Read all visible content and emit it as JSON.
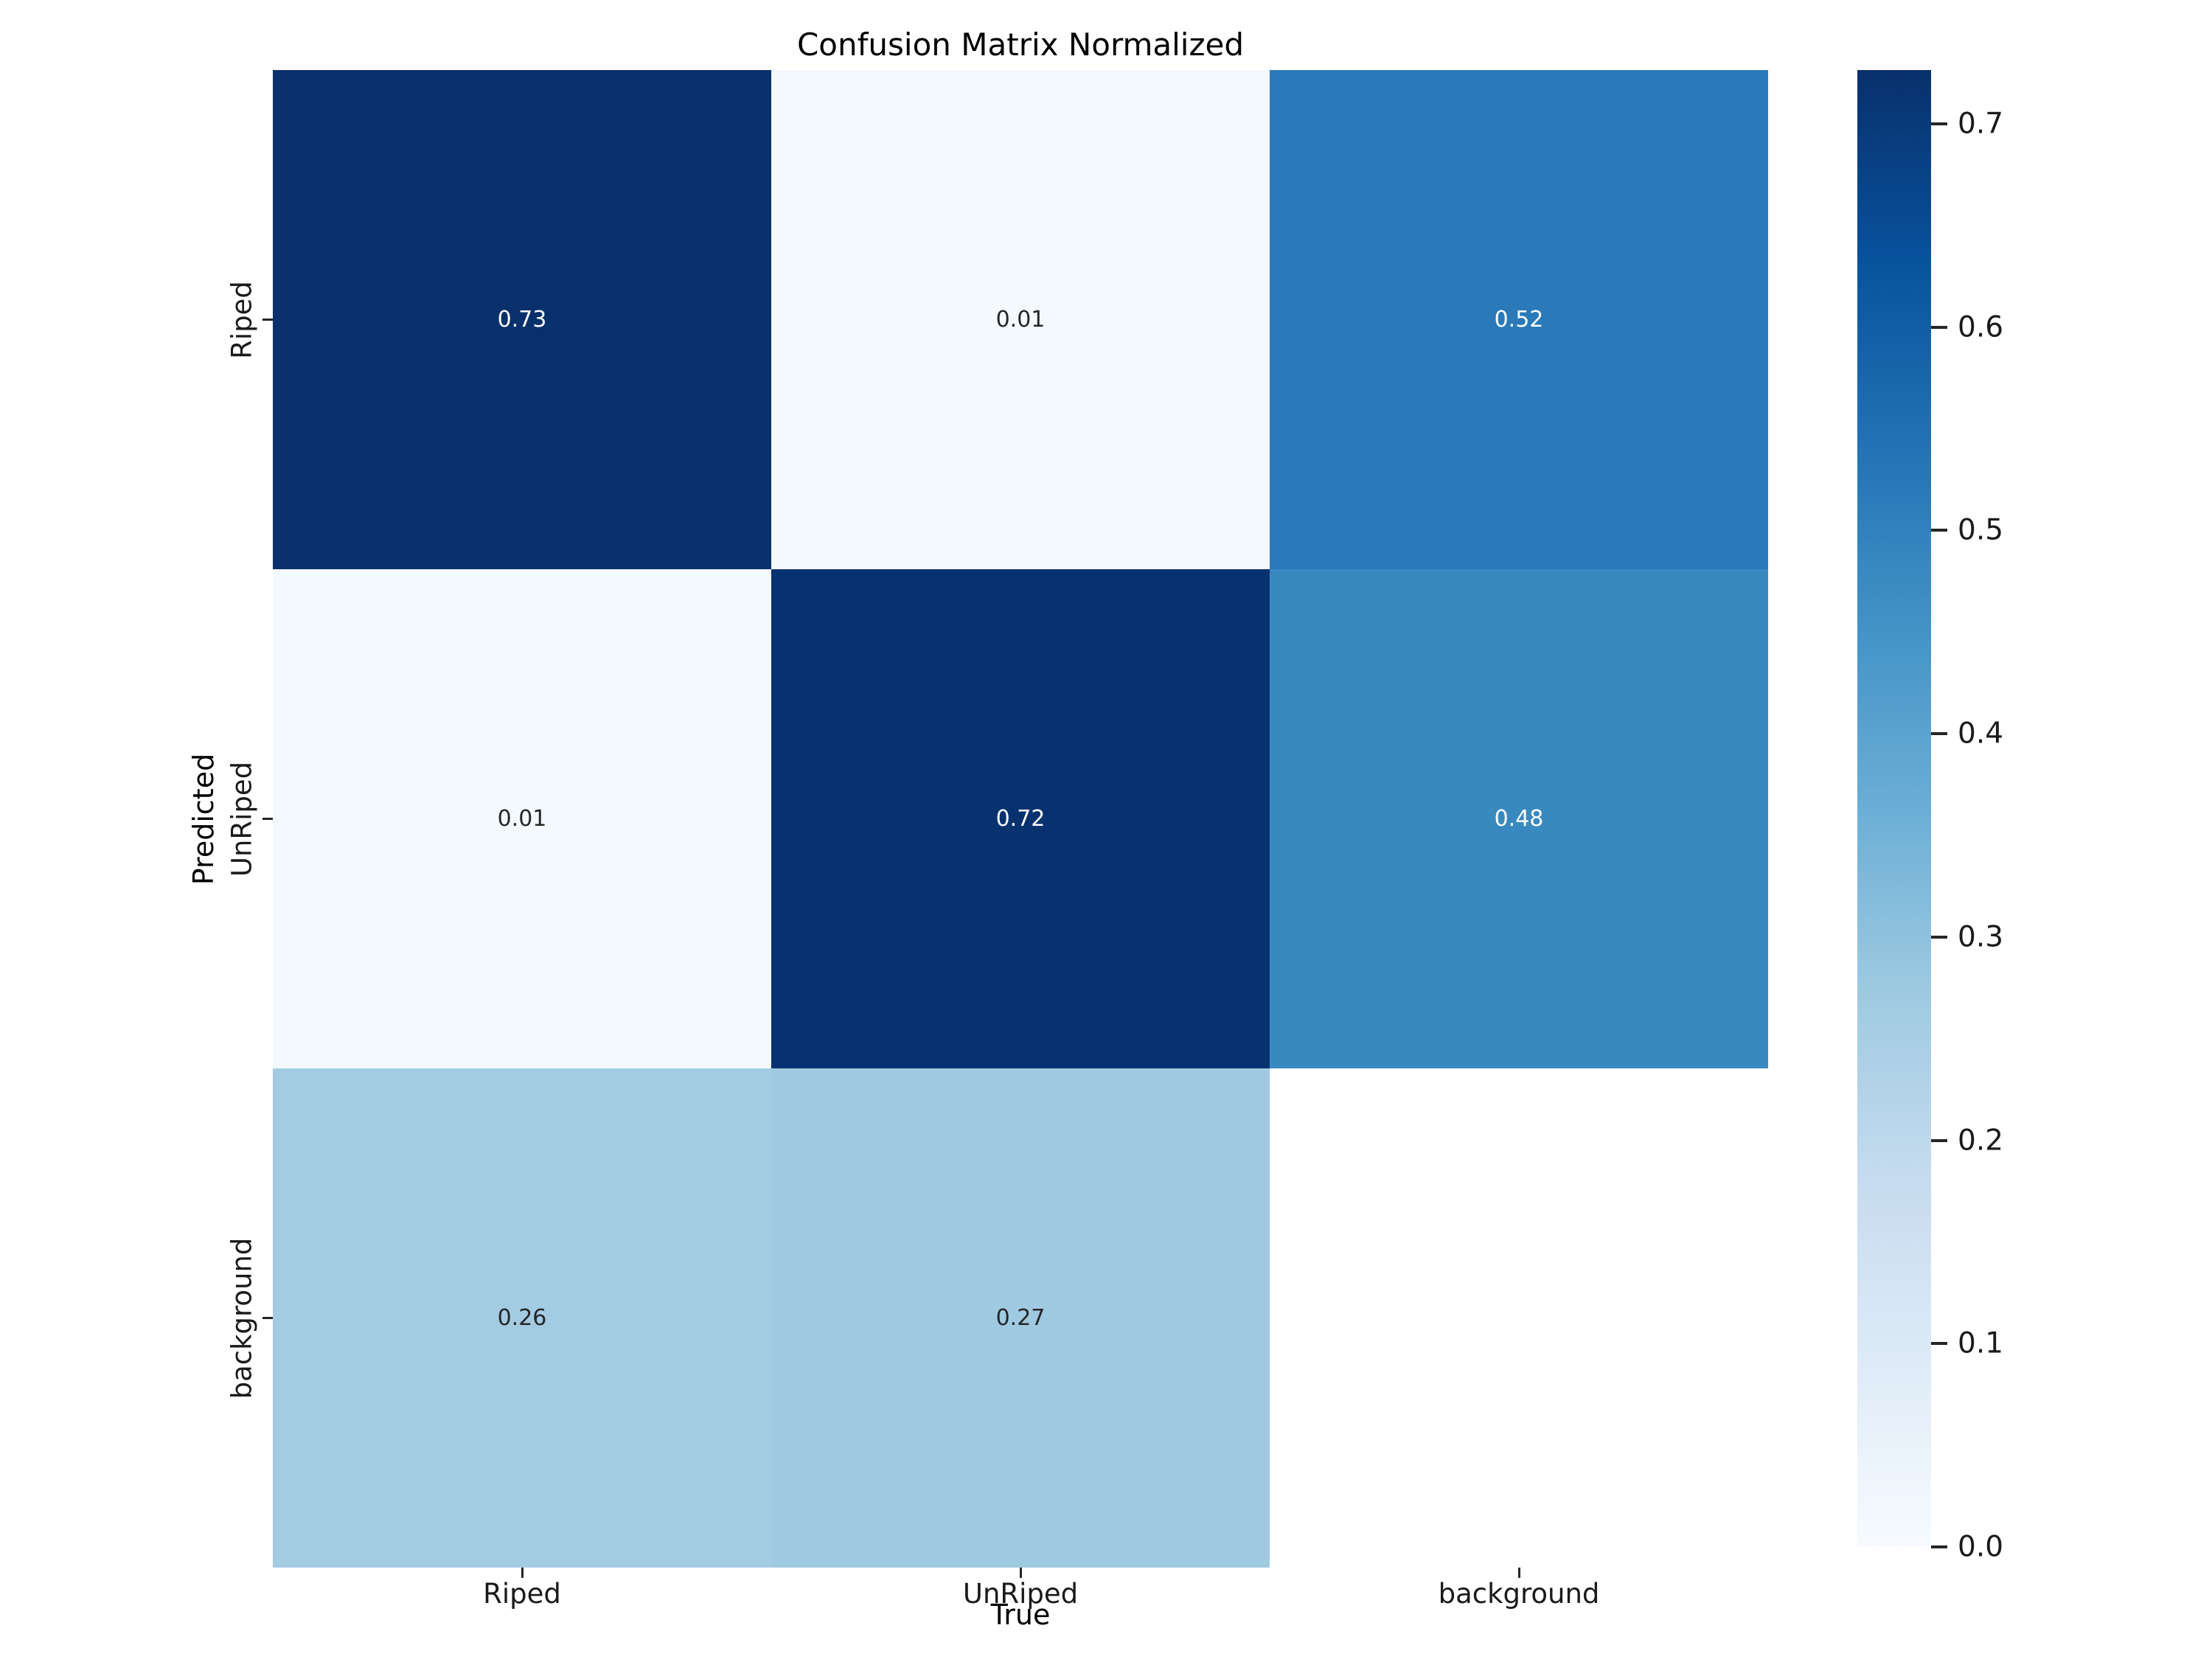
{
  "chart_data": {
    "type": "heatmap",
    "title": "Confusion Matrix Normalized",
    "xlabel": "True",
    "ylabel": "Predicted",
    "x_categories": [
      "Riped",
      "UnRiped",
      "background"
    ],
    "y_categories": [
      "Riped",
      "UnRiped",
      "background"
    ],
    "matrix": [
      [
        0.73,
        0.01,
        0.52
      ],
      [
        0.01,
        0.72,
        0.48
      ],
      [
        0.26,
        0.27,
        null
      ]
    ],
    "vmin": 0.0,
    "vmax": 0.7265,
    "colormap": "Blues",
    "colormap_anchors": [
      "#f7fbff",
      "#deebf7",
      "#c6dbef",
      "#9ecae1",
      "#6baed6",
      "#4292c6",
      "#2171b5",
      "#08519c",
      "#08306b"
    ],
    "colorbar_ticks": [
      "0.7",
      "0.6",
      "0.5",
      "0.4",
      "0.3",
      "0.2",
      "0.1",
      "0.0"
    ],
    "empty_cell_color": "#ffffff",
    "annotation_color_on_dark": "#ffffff",
    "annotation_color_on_light": "#262626",
    "legend_position": "right-colorbar",
    "grid": "off"
  }
}
